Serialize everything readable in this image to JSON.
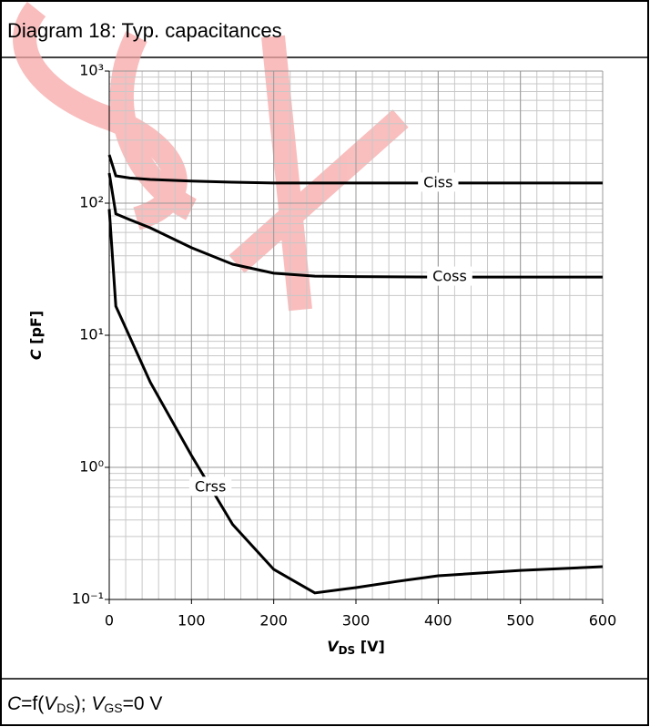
{
  "title": "Diagram 18: Typ. capacitances",
  "chart_data": {
    "type": "line",
    "y_label": [
      "C",
      " [pF]"
    ],
    "x_label": [
      "V",
      "DS",
      " [V]"
    ],
    "x": [
      0,
      8,
      25,
      50,
      100,
      150,
      200,
      250,
      300,
      350,
      400,
      500,
      600
    ],
    "series": [
      {
        "name": "Ciss",
        "color": "#000000",
        "values": [
          232,
          161,
          155,
          151,
          147,
          144,
          142,
          142,
          142,
          142,
          142,
          142,
          142
        ]
      },
      {
        "name": "Coss",
        "color": "#000000",
        "values": [
          169,
          83,
          75,
          65,
          46,
          34.5,
          29.5,
          28,
          27.8,
          27.7,
          27.6,
          27.6,
          27.6
        ]
      },
      {
        "name": "Crss",
        "color": "#000000",
        "values": [
          90,
          16.6,
          9.7,
          4.4,
          1.23,
          0.37,
          0.169,
          0.112,
          0.123,
          0.137,
          0.151,
          0.166,
          0.177
        ]
      }
    ],
    "xlim": [
      0,
      600
    ],
    "xticks": [
      0,
      100,
      200,
      300,
      400,
      500,
      600
    ],
    "ylim": [
      0.1,
      1000
    ],
    "y_log": true,
    "yticks": [
      {
        "value": 0.1,
        "label": "10⁻¹"
      },
      {
        "value": 1,
        "label": "10⁰"
      },
      {
        "value": 10,
        "label": "10¹"
      },
      {
        "value": 100,
        "label": "10²"
      },
      {
        "value": 1000,
        "label": "10³"
      }
    ],
    "grid": true
  },
  "footer": [
    "C",
    "=f(",
    "V",
    "DS",
    "); ",
    "V",
    "GS",
    "=0 V"
  ]
}
